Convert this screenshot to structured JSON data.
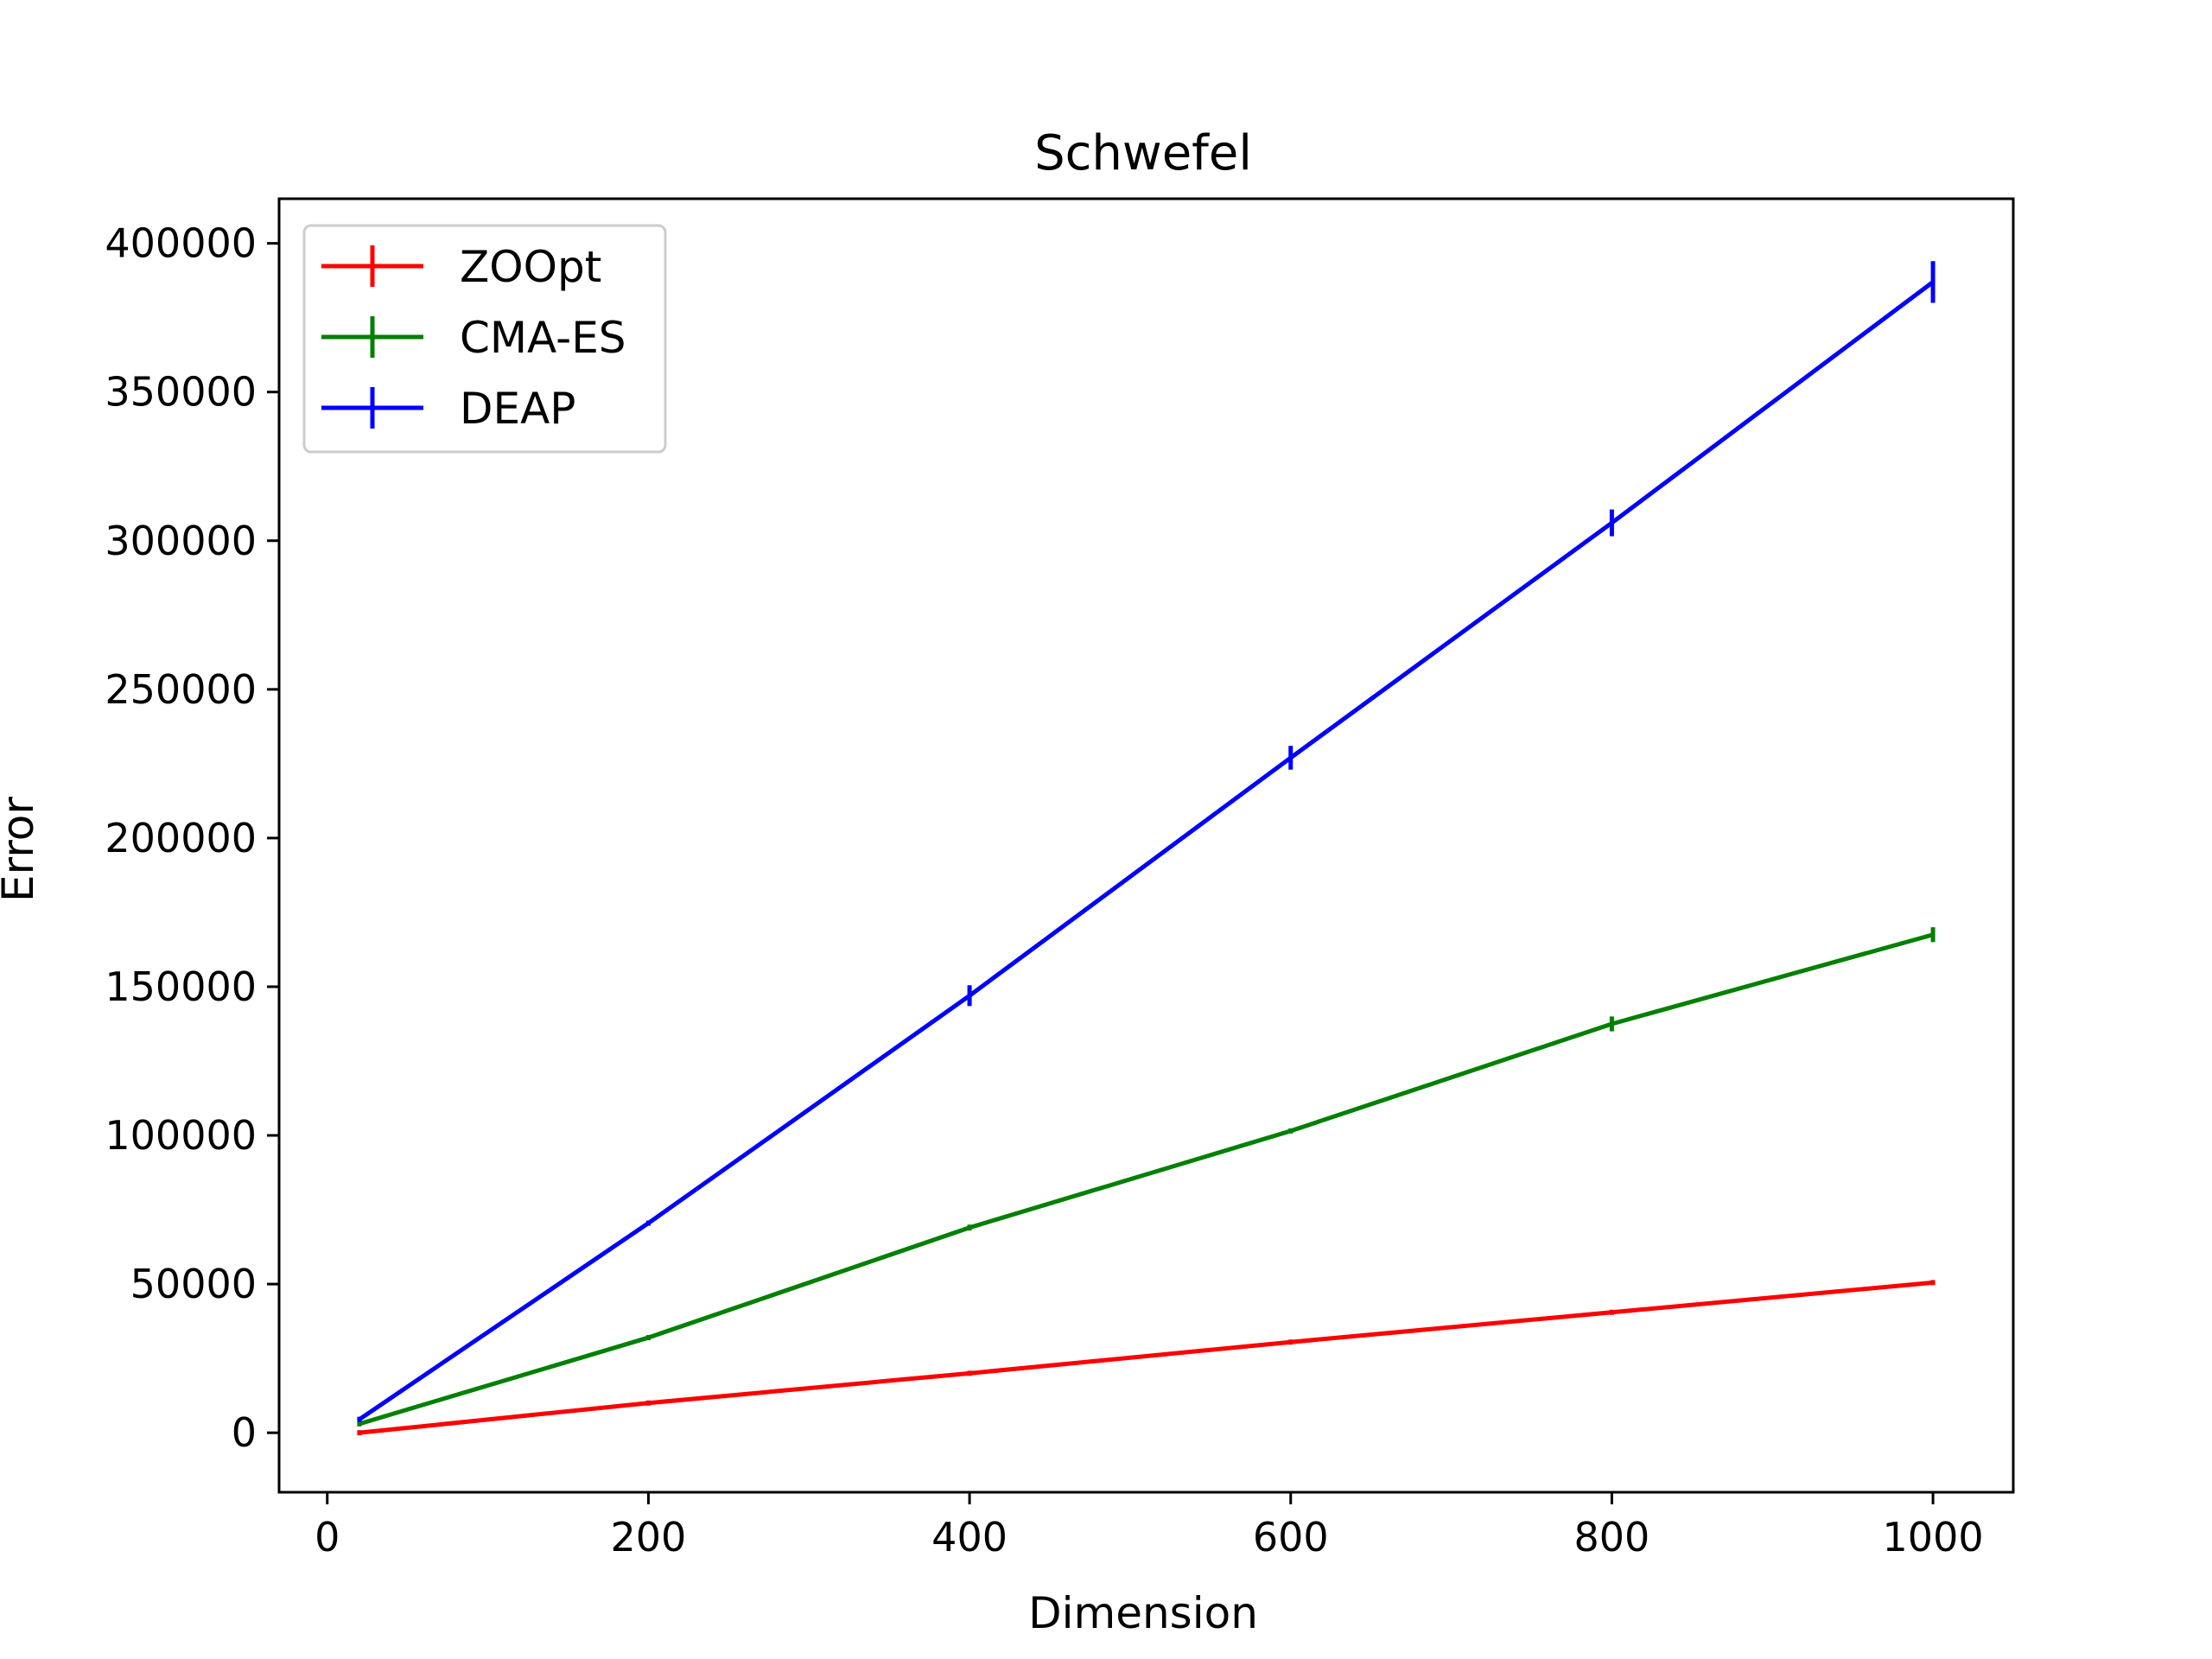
{
  "chart_data": {
    "type": "line",
    "title": "Schwefel",
    "xlabel": "Dimension",
    "ylabel": "Error",
    "xlim": [
      -30,
      1050
    ],
    "ylim": [
      -20000,
      415000
    ],
    "xticks": [
      0,
      200,
      400,
      600,
      800,
      1000
    ],
    "xtick_labels": [
      "0",
      "200",
      "400",
      "600",
      "800",
      "1000"
    ],
    "yticks": [
      0,
      50000,
      100000,
      150000,
      200000,
      250000,
      300000,
      350000,
      400000
    ],
    "ytick_labels": [
      "0",
      "50000",
      "100000",
      "150000",
      "200000",
      "250000",
      "300000",
      "350000",
      "400000"
    ],
    "legend_position": "top-left",
    "x": [
      20,
      200,
      400,
      600,
      800,
      1000
    ],
    "series": [
      {
        "name": "ZOOpt",
        "color": "#ff0000",
        "values": [
          0,
          10000,
          20000,
          30500,
          40500,
          50500
        ],
        "errors": [
          0,
          0,
          0,
          0,
          0,
          600
        ]
      },
      {
        "name": "CMA-ES",
        "color": "#008000",
        "values": [
          3000,
          32000,
          69000,
          101500,
          137500,
          167500
        ],
        "errors": [
          0,
          0,
          1000,
          800,
          2500,
          2500
        ]
      },
      {
        "name": "DEAP",
        "color": "#0000ff",
        "values": [
          4500,
          70500,
          147000,
          227000,
          306000,
          387000
        ],
        "errors": [
          0,
          0,
          3500,
          4000,
          4500,
          7000
        ]
      }
    ]
  }
}
